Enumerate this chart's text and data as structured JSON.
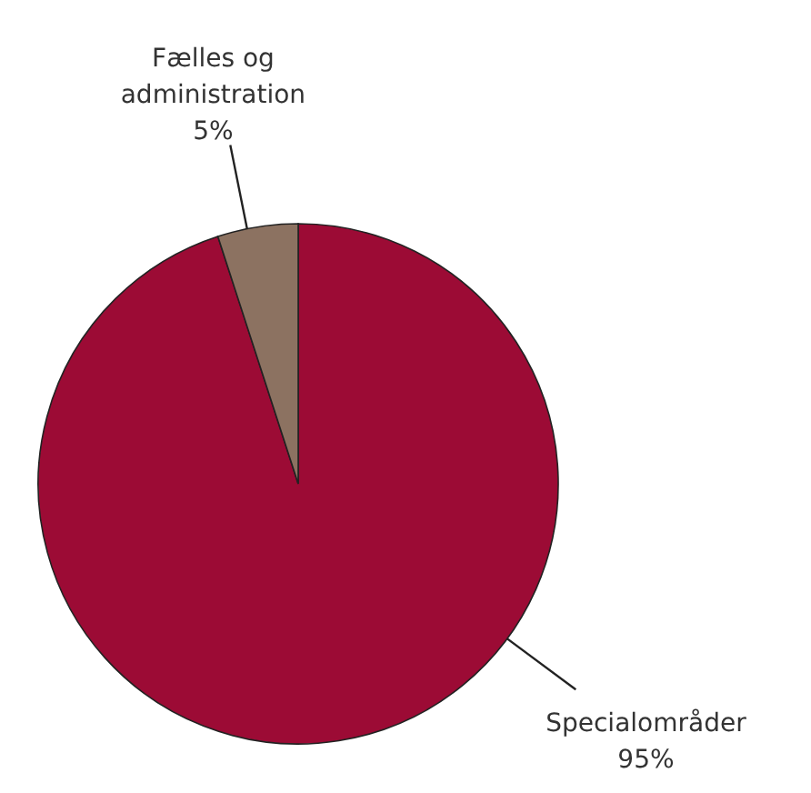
{
  "chart_data": {
    "type": "pie",
    "categories": [
      "Specialområder",
      "Fælles og administration"
    ],
    "values": [
      95,
      5
    ],
    "colors": [
      "#9c0b35",
      "#8c7261"
    ],
    "value_labels": [
      "95%",
      "5%"
    ],
    "legend": false
  }
}
